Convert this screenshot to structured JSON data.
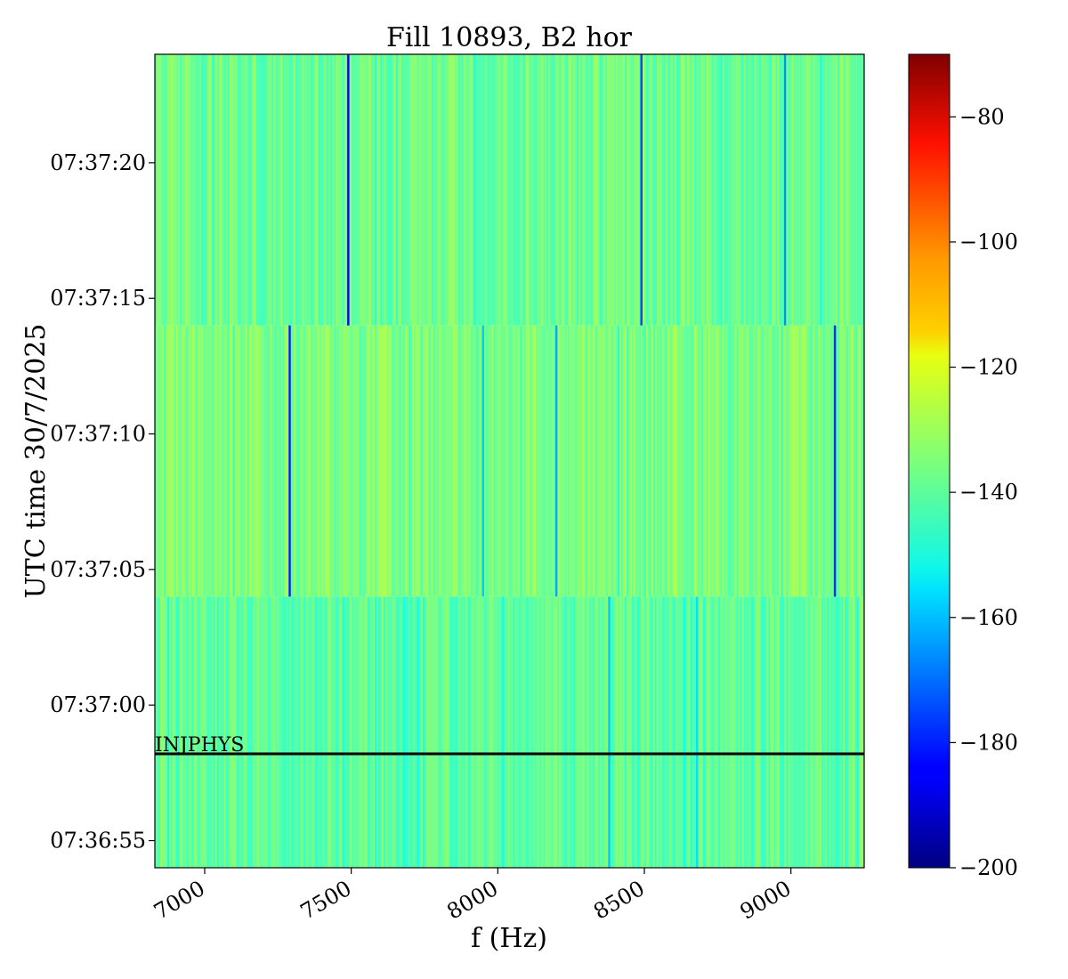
{
  "chart_data": {
    "type": "heatmap",
    "title": "Fill 10893, B2 hor",
    "xlabel": "f (Hz)",
    "ylabel": "UTC time 30/7/2025",
    "xlim": [
      6830,
      9250
    ],
    "ylim_seconds_labels": [
      "07:36:55",
      "07:37:00",
      "07:37:05",
      "07:37:10",
      "07:37:15",
      "07:37:20"
    ],
    "x_ticks": [
      7000,
      7500,
      8000,
      8500,
      9000
    ],
    "x_tick_labels": [
      "7000",
      "7500",
      "8000",
      "8500",
      "9000"
    ],
    "y_ticks": [
      "07:36:55",
      "07:37:00",
      "07:37:05",
      "07:37:10",
      "07:37:15",
      "07:37:20"
    ],
    "y_tick_labels": [
      "07:36:55",
      "07:37:00",
      "07:37:05",
      "07:37:10",
      "07:37:15",
      "07:37:20"
    ],
    "y_range": [
      "07:36:54",
      "07:37:24"
    ],
    "time_blocks": [
      {
        "start": "07:36:54",
        "end": "07:37:04",
        "level_db": -139
      },
      {
        "start": "07:37:04",
        "end": "07:37:14",
        "level_db": -135
      },
      {
        "start": "07:37:14",
        "end": "07:37:24",
        "level_db": -137
      }
    ],
    "dips": [
      {
        "block": 2,
        "f": 7490,
        "db": -185
      },
      {
        "block": 2,
        "f": 8490,
        "db": -175
      },
      {
        "block": 2,
        "f": 8980,
        "db": -165
      },
      {
        "block": 1,
        "f": 7290,
        "db": -180
      },
      {
        "block": 1,
        "f": 9150,
        "db": -178
      },
      {
        "block": 1,
        "f": 8200,
        "db": -162
      },
      {
        "block": 1,
        "f": 7950,
        "db": -158
      },
      {
        "block": 0,
        "f": 8380,
        "db": -158
      },
      {
        "block": 0,
        "f": 8680,
        "db": -155
      }
    ],
    "marker": {
      "label": "INJPHYS",
      "time": "07:36:58.2"
    },
    "colorbar": {
      "colormap": "jet",
      "range": [
        -200,
        -70
      ],
      "ticks": [
        -200,
        -180,
        -160,
        -140,
        -120,
        -100,
        -80
      ],
      "tick_labels": [
        "−200",
        "−180",
        "−160",
        "−140",
        "−120",
        "−100",
        "−80"
      ]
    },
    "grid": false,
    "legend": "none"
  }
}
